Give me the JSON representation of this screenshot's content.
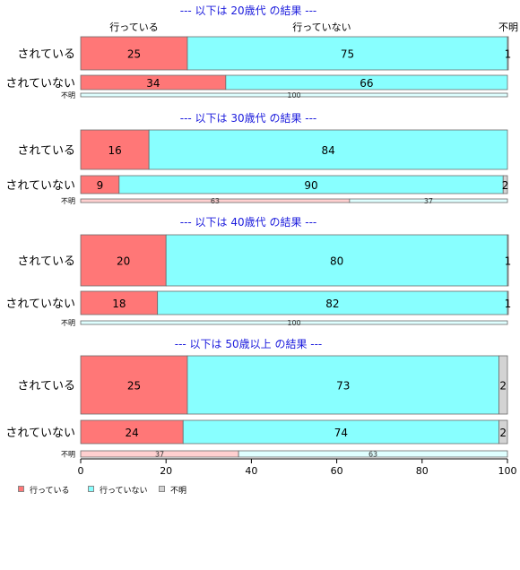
{
  "colors": {
    "yes": "#ff7777",
    "no": "#88ffff",
    "unknown": "#d3d3d3",
    "yes_light": "#ffd0d0",
    "no_light": "#dfffff",
    "title": "#1a1adc"
  },
  "legend": [
    {
      "label": "行っている",
      "color_key": "yes"
    },
    {
      "label": "行っていない",
      "color_key": "no"
    },
    {
      "label": "不明",
      "color_key": "unknown"
    }
  ],
  "column_headers": [
    "行っている",
    "行っていない",
    "不明"
  ],
  "chart_data": {
    "type": "bar",
    "orientation": "horizontal-stacked-percent",
    "xlim": [
      0,
      100
    ],
    "x_ticks": [
      0,
      20,
      40,
      60,
      80,
      100
    ],
    "series_names": [
      "行っている",
      "行っていない",
      "不明"
    ],
    "panels": [
      {
        "title": "--- 以下は 20歳代 の結果 ---",
        "rows": [
          {
            "label": "されている",
            "values": [
              25,
              75,
              1
            ],
            "size": "large"
          },
          {
            "label": "されていない",
            "values": [
              34,
              66,
              0
            ],
            "size": "medium"
          },
          {
            "label": "不明",
            "values": [
              0,
              100,
              0
            ],
            "size": "small"
          }
        ]
      },
      {
        "title": "--- 以下は 30歳代 の結果 ---",
        "rows": [
          {
            "label": "されている",
            "values": [
              16,
              84,
              0
            ],
            "size": "large"
          },
          {
            "label": "されていない",
            "values": [
              9,
              90,
              2
            ],
            "size": "medium"
          },
          {
            "label": "不明",
            "values": [
              63,
              37,
              0
            ],
            "size": "small"
          }
        ]
      },
      {
        "title": "--- 以下は 40歳代 の結果 ---",
        "rows": [
          {
            "label": "されている",
            "values": [
              20,
              80,
              1
            ],
            "size": "large"
          },
          {
            "label": "されていない",
            "values": [
              18,
              82,
              1
            ],
            "size": "medium"
          },
          {
            "label": "不明",
            "values": [
              0,
              100,
              0
            ],
            "size": "small"
          }
        ]
      },
      {
        "title": "--- 以下は 50歳以上 の結果 ---",
        "rows": [
          {
            "label": "されている",
            "values": [
              25,
              73,
              2
            ],
            "size": "large"
          },
          {
            "label": "されていない",
            "values": [
              24,
              74,
              2
            ],
            "size": "medium"
          },
          {
            "label": "不明",
            "values": [
              37,
              63,
              0
            ],
            "size": "small"
          }
        ]
      }
    ]
  }
}
